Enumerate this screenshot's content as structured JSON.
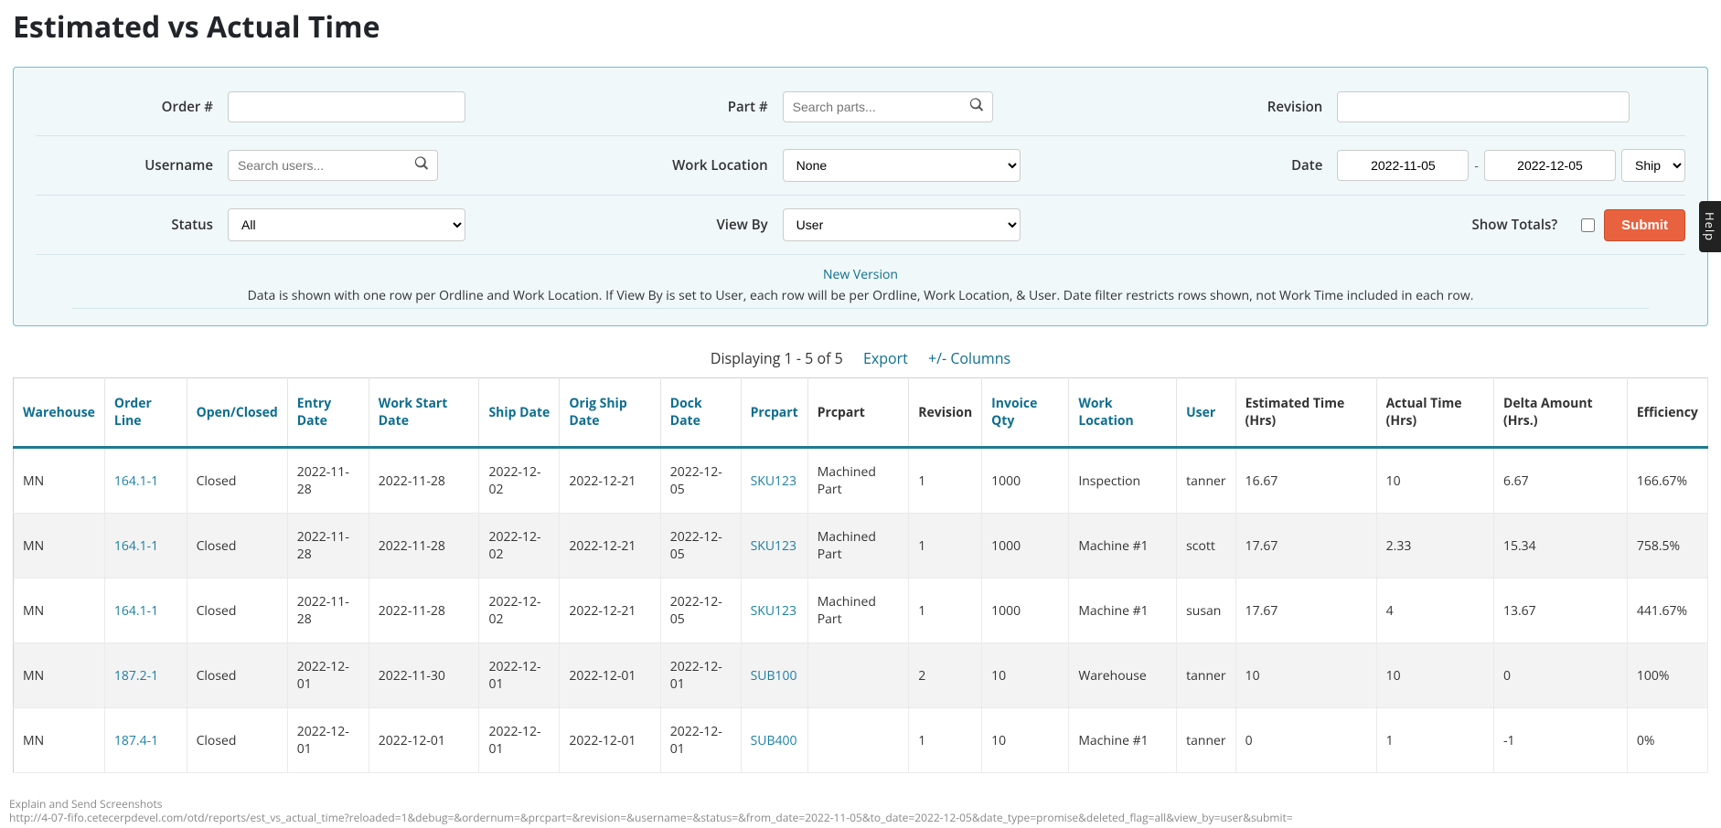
{
  "title": "Estimated vs Actual Time",
  "filters": {
    "order": {
      "label": "Order #",
      "value": ""
    },
    "part": {
      "label": "Part #",
      "placeholder": "Search parts..."
    },
    "revision": {
      "label": "Revision",
      "value": ""
    },
    "username": {
      "label": "Username",
      "placeholder": "Search users..."
    },
    "work_location": {
      "label": "Work Location",
      "options": [
        "None"
      ],
      "selected": "None"
    },
    "date": {
      "label": "Date",
      "from": "2022-11-05",
      "to": "2022-12-05",
      "sep": "-",
      "type_selected": "Ship I"
    },
    "status": {
      "label": "Status",
      "options": [
        "All"
      ],
      "selected": "All"
    },
    "view_by": {
      "label": "View By",
      "options": [
        "User"
      ],
      "selected": "User"
    },
    "show_totals": {
      "label": "Show Totals?",
      "checked": false
    },
    "submit": "Submit"
  },
  "info": {
    "new_version": "New Version",
    "text": "Data is shown with one row per Ordline and Work Location. If View By is set to User, each row will be per Ordline, Work Location, & User. Date filter restricts rows shown, not Work Time included in each row."
  },
  "results": {
    "summary": "Displaying 1 - 5 of 5",
    "export": "Export",
    "columns_toggle": "+/- Columns"
  },
  "table": {
    "columns": [
      {
        "label": "Warehouse",
        "link": true
      },
      {
        "label": "Order Line",
        "link": true
      },
      {
        "label": "Open/Closed",
        "link": true
      },
      {
        "label": "Entry Date",
        "link": true
      },
      {
        "label": "Work Start Date",
        "link": true
      },
      {
        "label": "Ship Date",
        "link": true
      },
      {
        "label": "Orig Ship Date",
        "link": true
      },
      {
        "label": "Dock Date",
        "link": true
      },
      {
        "label": "Prcpart",
        "link": true
      },
      {
        "label": "Prcpart",
        "link": false
      },
      {
        "label": "Revision",
        "link": false
      },
      {
        "label": "Invoice Qty",
        "link": true
      },
      {
        "label": "Work Location",
        "link": true
      },
      {
        "label": "User",
        "link": true
      },
      {
        "label": "Estimated Time (Hrs)",
        "link": false
      },
      {
        "label": "Actual Time (Hrs)",
        "link": false
      },
      {
        "label": "Delta Amount (Hrs.)",
        "link": false
      },
      {
        "label": "Efficiency",
        "link": false
      }
    ],
    "rows": [
      {
        "warehouse": "MN",
        "order_line": "164.1-1",
        "open_closed": "Closed",
        "entry_date": "2022-11-28",
        "work_start": "2022-11-28",
        "ship_date": "2022-12-02",
        "orig_ship": "2022-12-21",
        "dock_date": "2022-12-05",
        "prcpart": "SKU123",
        "prcpart_name": "Machined Part",
        "revision": "1",
        "invoice_qty": "1000",
        "work_location": "Inspection",
        "user": "tanner",
        "est_time": "16.67",
        "actual_time": "10",
        "delta": "6.67",
        "efficiency": "166.67%"
      },
      {
        "warehouse": "MN",
        "order_line": "164.1-1",
        "open_closed": "Closed",
        "entry_date": "2022-11-28",
        "work_start": "2022-11-28",
        "ship_date": "2022-12-02",
        "orig_ship": "2022-12-21",
        "dock_date": "2022-12-05",
        "prcpart": "SKU123",
        "prcpart_name": "Machined Part",
        "revision": "1",
        "invoice_qty": "1000",
        "work_location": "Machine #1",
        "user": "scott",
        "est_time": "17.67",
        "actual_time": "2.33",
        "delta": "15.34",
        "efficiency": "758.5%"
      },
      {
        "warehouse": "MN",
        "order_line": "164.1-1",
        "open_closed": "Closed",
        "entry_date": "2022-11-28",
        "work_start": "2022-11-28",
        "ship_date": "2022-12-02",
        "orig_ship": "2022-12-21",
        "dock_date": "2022-12-05",
        "prcpart": "SKU123",
        "prcpart_name": "Machined Part",
        "revision": "1",
        "invoice_qty": "1000",
        "work_location": "Machine #1",
        "user": "susan",
        "est_time": "17.67",
        "actual_time": "4",
        "delta": "13.67",
        "efficiency": "441.67%"
      },
      {
        "warehouse": "MN",
        "order_line": "187.2-1",
        "open_closed": "Closed",
        "entry_date": "2022-12-01",
        "work_start": "2022-11-30",
        "ship_date": "2022-12-01",
        "orig_ship": "2022-12-01",
        "dock_date": "2022-12-01",
        "prcpart": "SUB100",
        "prcpart_name": "",
        "revision": "2",
        "invoice_qty": "10",
        "work_location": "Warehouse",
        "user": "tanner",
        "est_time": "10",
        "actual_time": "10",
        "delta": "0",
        "efficiency": "100%"
      },
      {
        "warehouse": "MN",
        "order_line": "187.4-1",
        "open_closed": "Closed",
        "entry_date": "2022-12-01",
        "work_start": "2022-12-01",
        "ship_date": "2022-12-01",
        "orig_ship": "2022-12-01",
        "dock_date": "2022-12-01",
        "prcpart": "SUB400",
        "prcpart_name": "",
        "revision": "1",
        "invoice_qty": "10",
        "work_location": "Machine #1",
        "user": "tanner",
        "est_time": "0",
        "actual_time": "1",
        "delta": "-1",
        "efficiency": "0%"
      }
    ]
  },
  "help_tab": "Help",
  "footer": {
    "line1": "Explain and Send Screenshots",
    "line2": "http://4-07-fifo.cetecerpdevel.com/otd/reports/est_vs_actual_time?reloaded=1&debug=&ordernum=&prcpart=&revision=&username=&status=&from_date=2022-11-05&to_date=2022-12-05&date_type=promise&deleted_flag=all&view_by=user&submit="
  }
}
